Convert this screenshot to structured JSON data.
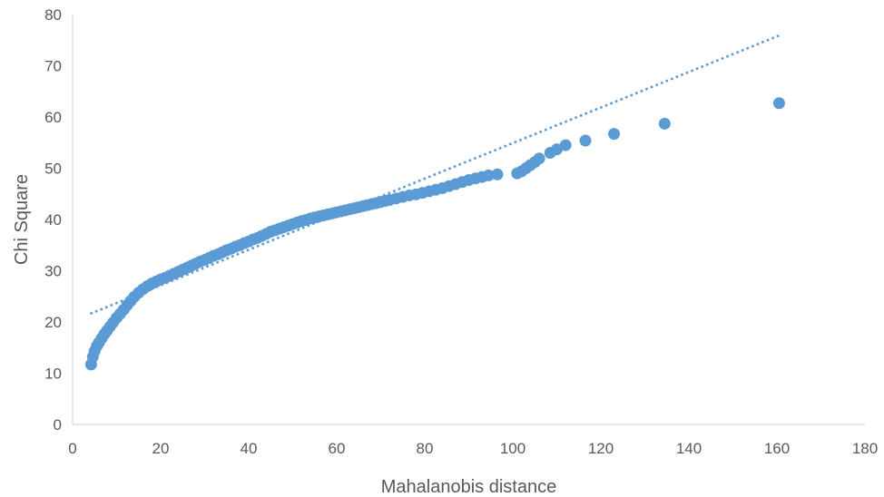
{
  "chart_data": {
    "type": "scatter",
    "title": "",
    "xlabel": "Mahalanobis distance",
    "ylabel": "Chi Square",
    "xlim": [
      0,
      180
    ],
    "ylim": [
      0,
      80
    ],
    "x_ticks": [
      "0",
      "20",
      "40",
      "60",
      "80",
      "100",
      "120",
      "140",
      "160",
      "180"
    ],
    "y_ticks": [
      "0",
      "10",
      "20",
      "30",
      "40",
      "50",
      "60",
      "70",
      "80"
    ],
    "grid": false,
    "legend": "none",
    "series": [
      {
        "color": "#5b9bd5",
        "points": [
          [
            4.2,
            11.7
          ],
          [
            4.6,
            13.2
          ],
          [
            5.0,
            14.3
          ],
          [
            5.5,
            15.3
          ],
          [
            6.0,
            16.0
          ],
          [
            6.6,
            16.8
          ],
          [
            7.2,
            17.6
          ],
          [
            7.8,
            18.3
          ],
          [
            8.5,
            19.1
          ],
          [
            9.2,
            19.9
          ],
          [
            10.0,
            20.8
          ],
          [
            10.8,
            21.6
          ],
          [
            11.6,
            22.4
          ],
          [
            12.4,
            23.3
          ],
          [
            13.2,
            24.1
          ],
          [
            14.0,
            24.9
          ],
          [
            15.0,
            25.7
          ],
          [
            16.0,
            26.4
          ],
          [
            17.0,
            27.0
          ],
          [
            18.0,
            27.5
          ],
          [
            19.0,
            27.9
          ],
          [
            20.0,
            28.3
          ],
          [
            21.0,
            28.6
          ],
          [
            22.0,
            29.0
          ],
          [
            23.0,
            29.4
          ],
          [
            24.0,
            29.8
          ],
          [
            25.0,
            30.2
          ],
          [
            26.0,
            30.6
          ],
          [
            27.0,
            31.0
          ],
          [
            28.0,
            31.4
          ],
          [
            29.0,
            31.8
          ],
          [
            30.0,
            32.1
          ],
          [
            31.0,
            32.5
          ],
          [
            32.0,
            32.9
          ],
          [
            33.0,
            33.2
          ],
          [
            34.0,
            33.6
          ],
          [
            35.0,
            34.0
          ],
          [
            36.0,
            34.3
          ],
          [
            37.0,
            34.7
          ],
          [
            38.0,
            35.0
          ],
          [
            39.0,
            35.4
          ],
          [
            40.0,
            35.7
          ],
          [
            41.0,
            36.1
          ],
          [
            42.0,
            36.4
          ],
          [
            43.0,
            36.8
          ],
          [
            44.0,
            37.2
          ],
          [
            45.0,
            37.6
          ],
          [
            46.0,
            37.9
          ],
          [
            47.0,
            38.2
          ],
          [
            48.0,
            38.5
          ],
          [
            49.0,
            38.8
          ],
          [
            50.0,
            39.1
          ],
          [
            51.0,
            39.4
          ],
          [
            52.0,
            39.7
          ],
          [
            53.0,
            39.9
          ],
          [
            54.0,
            40.2
          ],
          [
            55.0,
            40.4
          ],
          [
            56.0,
            40.6
          ],
          [
            57.0,
            40.8
          ],
          [
            58.0,
            41.0
          ],
          [
            59.0,
            41.2
          ],
          [
            60.0,
            41.4
          ],
          [
            61.0,
            41.6
          ],
          [
            62.0,
            41.8
          ],
          [
            63.0,
            42.0
          ],
          [
            64.0,
            42.2
          ],
          [
            65.0,
            42.4
          ],
          [
            66.0,
            42.6
          ],
          [
            67.0,
            42.8
          ],
          [
            68.0,
            43.0
          ],
          [
            69.0,
            43.2
          ],
          [
            70.0,
            43.4
          ],
          [
            71.0,
            43.6
          ],
          [
            72.0,
            43.8
          ],
          [
            73.5,
            44.1
          ],
          [
            75.0,
            44.4
          ],
          [
            76.5,
            44.7
          ],
          [
            78.0,
            44.9
          ],
          [
            79.5,
            45.2
          ],
          [
            81.0,
            45.5
          ],
          [
            82.5,
            45.8
          ],
          [
            84.0,
            46.1
          ],
          [
            85.5,
            46.5
          ],
          [
            87.0,
            46.9
          ],
          [
            88.5,
            47.3
          ],
          [
            90.0,
            47.7
          ],
          [
            91.5,
            48.0
          ],
          [
            93.0,
            48.3
          ],
          [
            94.5,
            48.6
          ],
          [
            96.5,
            48.8
          ],
          [
            101.0,
            49.0
          ],
          [
            102.0,
            49.4
          ],
          [
            103.0,
            50.0
          ],
          [
            104.0,
            50.6
          ],
          [
            105.0,
            51.2
          ],
          [
            106.0,
            51.9
          ],
          [
            108.5,
            53.0
          ],
          [
            110.0,
            53.7
          ],
          [
            112.0,
            54.5
          ],
          [
            116.5,
            55.4
          ],
          [
            123.0,
            56.7
          ],
          [
            134.5,
            58.7
          ],
          [
            160.5,
            62.7
          ]
        ]
      }
    ],
    "trendline": {
      "style": "dotted",
      "color": "#5b9bd5",
      "from": [
        4.0,
        21.6
      ],
      "to": [
        160.5,
        75.9
      ]
    }
  }
}
